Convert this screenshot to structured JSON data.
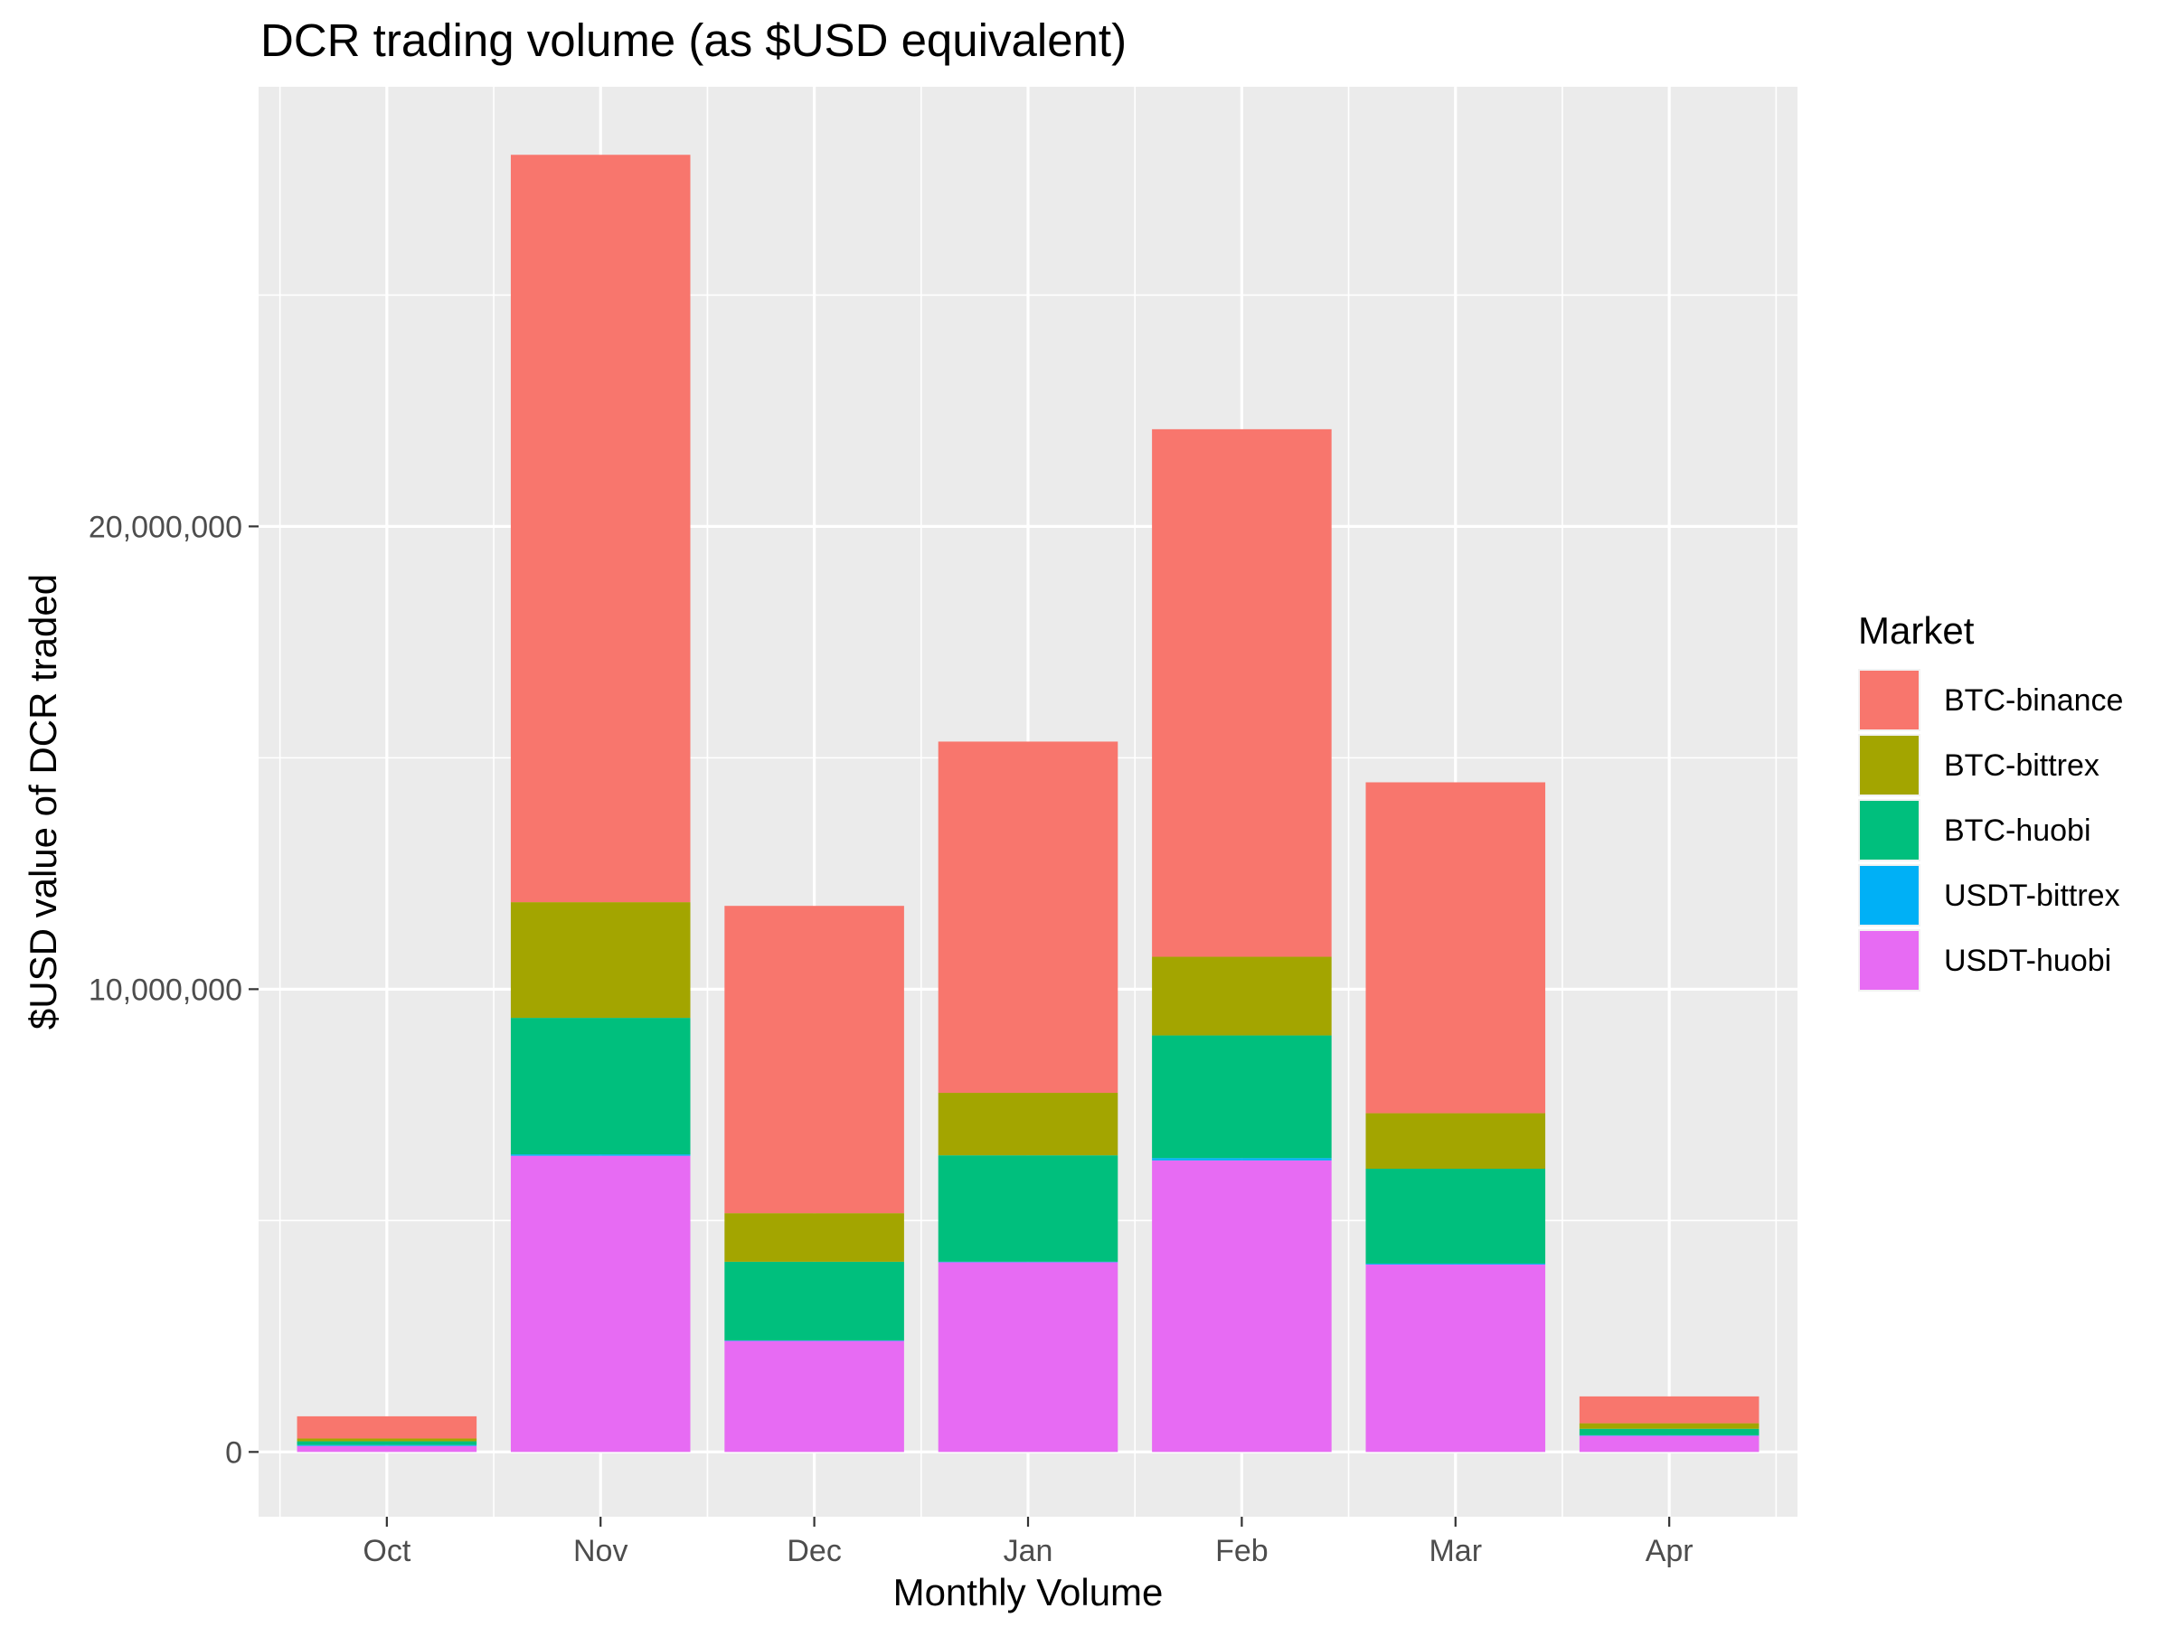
{
  "chart_data": {
    "type": "bar",
    "stacked": true,
    "title": "DCR trading volume (as $USD equivalent)",
    "xlabel": "Monthly Volume",
    "ylabel": "$USD value of DCR traded",
    "categories": [
      "Oct",
      "Nov",
      "Dec",
      "Jan",
      "Feb",
      "Mar",
      "Apr"
    ],
    "ylim": [
      -1400000,
      29500000
    ],
    "yticks": [
      0,
      10000000,
      20000000
    ],
    "ytick_labels": [
      "0",
      "10,000,000",
      "20,000,000"
    ],
    "grid": true,
    "legend": {
      "title": "Market",
      "position": "right"
    },
    "series": [
      {
        "name": "USDT-huobi",
        "color": "#E76BF3",
        "values": [
          130000,
          6400000,
          2400000,
          4100000,
          6300000,
          4050000,
          350000
        ]
      },
      {
        "name": "USDT-bittrex",
        "color": "#00B0F6",
        "values": [
          20000,
          30000,
          10000,
          10000,
          50000,
          20000,
          10000
        ]
      },
      {
        "name": "BTC-huobi",
        "color": "#00BF7D",
        "values": [
          80000,
          2950000,
          1700000,
          2300000,
          2650000,
          2050000,
          140000
        ]
      },
      {
        "name": "BTC-bittrex",
        "color": "#A3A500",
        "values": [
          60000,
          2500000,
          1050000,
          1350000,
          1700000,
          1200000,
          120000
        ]
      },
      {
        "name": "BTC-binance",
        "color": "#F8766D",
        "values": [
          480000,
          16150000,
          6640000,
          7590000,
          11400000,
          7150000,
          580000
        ]
      }
    ],
    "legend_order": [
      "BTC-binance",
      "BTC-bittrex",
      "BTC-huobi",
      "USDT-bittrex",
      "USDT-huobi"
    ]
  }
}
